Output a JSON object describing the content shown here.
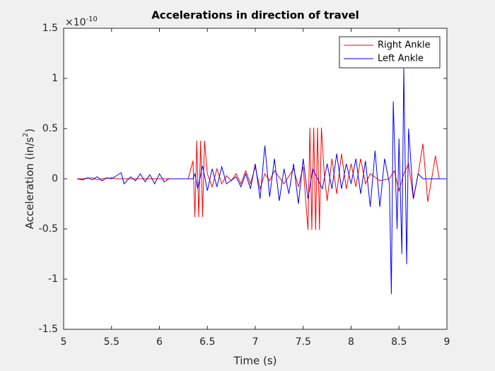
{
  "chart_data": {
    "type": "line",
    "title": "Accelerations in direction of travel",
    "xlabel": "Time (s)",
    "ylabel": [
      "Acceleration (in/s",
      "2",
      ")"
    ],
    "y_exponent": {
      "base": "×10",
      "power": "-10"
    },
    "xlim": [
      5,
      9
    ],
    "xticks": [
      5,
      5.5,
      6,
      6.5,
      7,
      7.5,
      8,
      8.5,
      9
    ],
    "ylim": [
      -1.5,
      1.5
    ],
    "yticks": [
      1.5,
      1,
      0.5,
      0,
      -0.5,
      -1,
      -1.5
    ],
    "legend": "top-right",
    "series": [
      {
        "name": "Right Ankle",
        "color": "#ff0000",
        "x": [
          5.14,
          5.2,
          5.3,
          5.35,
          5.4,
          5.5,
          5.55,
          6.3,
          6.35,
          6.37,
          6.39,
          6.41,
          6.43,
          6.45,
          6.47,
          6.5,
          6.55,
          6.6,
          6.65,
          6.7,
          6.75,
          6.8,
          6.85,
          6.9,
          6.95,
          7.0,
          7.05,
          7.1,
          7.15,
          7.2,
          7.3,
          7.4,
          7.45,
          7.5,
          7.55,
          7.57,
          7.59,
          7.61,
          7.63,
          7.65,
          7.67,
          7.69,
          7.72,
          7.75,
          7.8,
          7.85,
          7.9,
          7.95,
          8.0,
          8.05,
          8.1,
          8.15,
          8.2,
          8.3,
          8.4,
          8.45,
          8.5,
          8.55,
          8.6,
          8.65,
          8.7,
          8.75,
          8.8,
          8.85,
          8.88,
          8.92,
          9.0
        ],
        "values": [
          0,
          0,
          0.01,
          -0.01,
          0,
          0.01,
          0,
          0,
          0.18,
          -0.38,
          0.38,
          -0.38,
          0.38,
          -0.38,
          0.38,
          0.05,
          -0.08,
          0.1,
          -0.05,
          0.03,
          -0.02,
          0.05,
          -0.05,
          0.08,
          -0.05,
          0.12,
          -0.1,
          0.05,
          -0.02,
          0.08,
          -0.05,
          0.1,
          -0.08,
          0.12,
          -0.51,
          0.51,
          -0.51,
          0.51,
          -0.51,
          0.51,
          -0.51,
          0.51,
          0.05,
          -0.22,
          0.2,
          -0.15,
          0.25,
          -0.1,
          0.15,
          -0.08,
          0.2,
          -0.05,
          0.05,
          -0.02,
          0,
          0.08,
          -0.12,
          0.05,
          0.15,
          -0.2,
          0.05,
          0.35,
          -0.23,
          0.05,
          0.23,
          0,
          0
        ]
      },
      {
        "name": "Left Ankle",
        "color": "#0000ff",
        "x": [
          5.14,
          5.2,
          5.25,
          5.3,
          5.35,
          5.4,
          5.45,
          5.5,
          5.6,
          5.63,
          5.7,
          5.75,
          5.8,
          5.85,
          5.9,
          5.95,
          6.0,
          6.05,
          6.1,
          6.35,
          6.37,
          6.4,
          6.45,
          6.5,
          6.55,
          6.6,
          6.65,
          6.7,
          6.8,
          6.85,
          6.9,
          6.95,
          7.0,
          7.05,
          7.1,
          7.15,
          7.2,
          7.25,
          7.3,
          7.35,
          7.4,
          7.45,
          7.5,
          7.55,
          7.6,
          7.7,
          7.75,
          7.8,
          7.85,
          7.9,
          7.95,
          8.0,
          8.05,
          8.1,
          8.15,
          8.2,
          8.25,
          8.3,
          8.35,
          8.4,
          8.42,
          8.44,
          8.48,
          8.5,
          8.53,
          8.55,
          8.58,
          8.6,
          8.65,
          8.7,
          8.75,
          9.0
        ],
        "values": [
          0,
          -0.01,
          0.01,
          -0.01,
          0.02,
          -0.02,
          0.01,
          0,
          0.06,
          -0.05,
          0.02,
          -0.02,
          0.05,
          -0.03,
          0.04,
          -0.05,
          0.05,
          -0.03,
          0,
          0,
          0.05,
          -0.1,
          0.13,
          -0.12,
          0.1,
          -0.08,
          0.12,
          -0.05,
          0.02,
          -0.08,
          0.05,
          -0.1,
          0.15,
          -0.2,
          0.33,
          -0.18,
          0.2,
          -0.22,
          0.1,
          -0.15,
          0.15,
          -0.25,
          0.2,
          -0.2,
          0.1,
          -0.1,
          0.15,
          -0.1,
          0.25,
          -0.1,
          0.15,
          -0.05,
          0.2,
          -0.15,
          0.18,
          -0.28,
          0.28,
          -0.28,
          0.2,
          -0.05,
          -1.15,
          0.77,
          -0.5,
          0.4,
          -0.75,
          1.1,
          -0.85,
          0.5,
          -0.2,
          0.05,
          0,
          0
        ]
      }
    ]
  }
}
